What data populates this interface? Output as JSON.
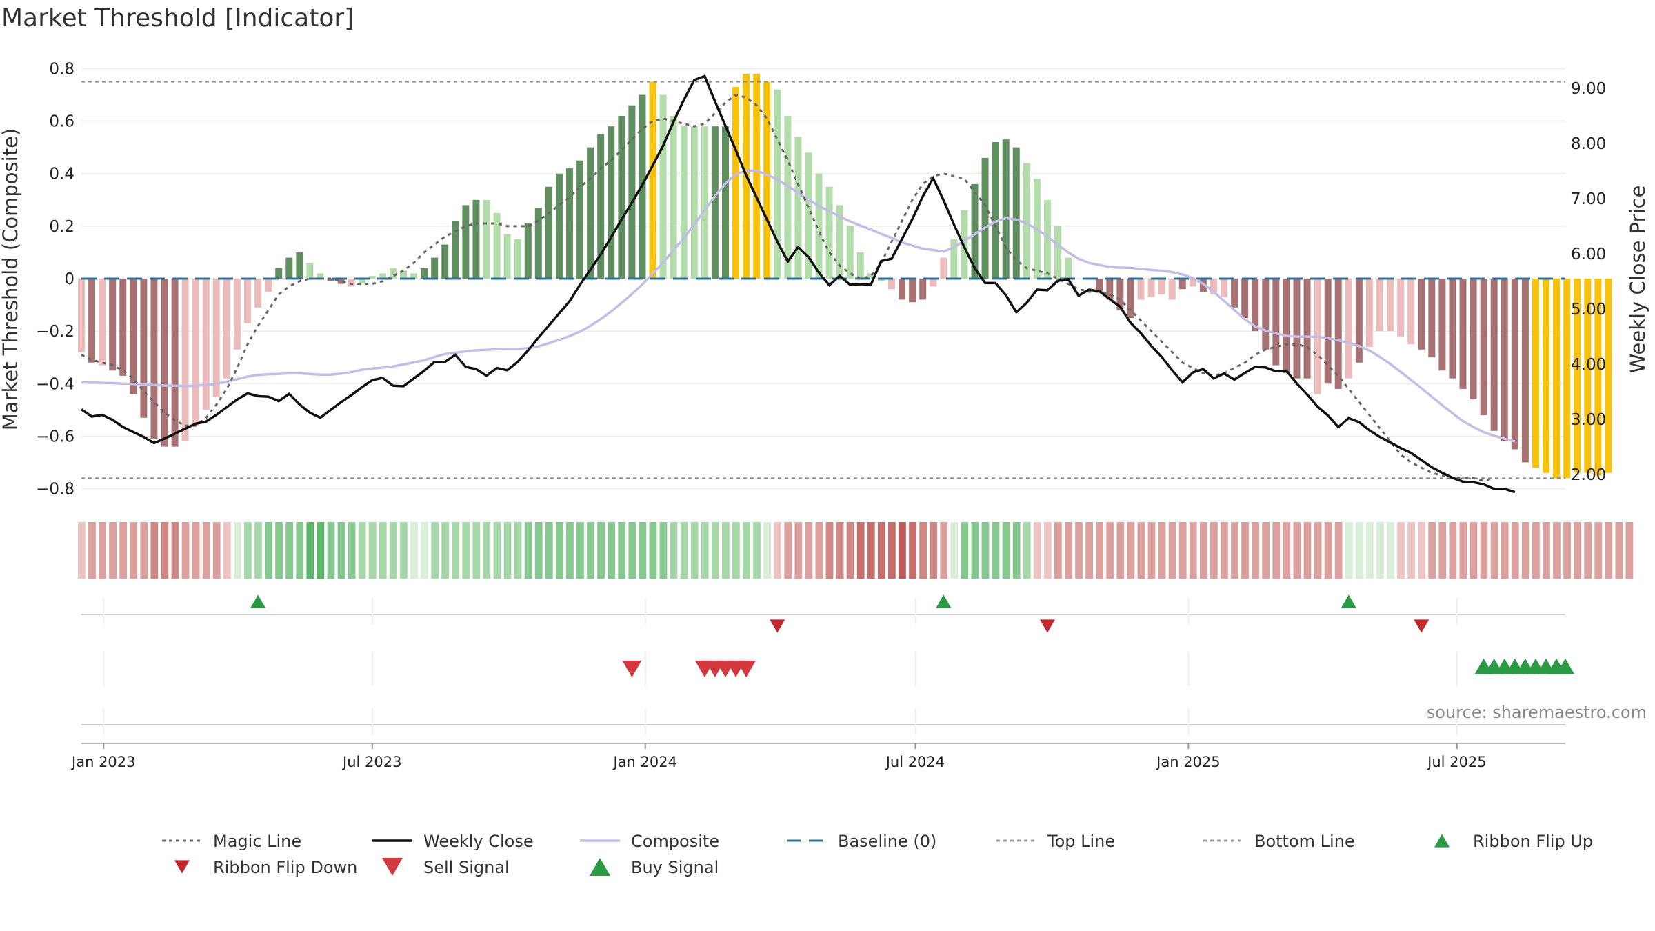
{
  "title": "Market Threshold [Indicator]",
  "source": "source: sharemaestro.com",
  "colors": {
    "strong_green": "#5f8f5f",
    "light_green": "#b2dcaa",
    "strong_red": "#a87272",
    "light_red": "#ebbcb9",
    "gold": "#f7c20e",
    "weekly_close": "#111111",
    "composite": "#c3bde8",
    "magic_line": "#666666",
    "baseline": "#2a6f9c",
    "signal_up": "#2a9a45",
    "signal_down": "#d2393f"
  },
  "chart_data": {
    "type": "bar",
    "title": "Market Threshold [Indicator]",
    "ylabel_left": "Market Threshold (Composite)",
    "ylabel_right": "Weekly Close Price",
    "ylim_left": [
      -0.83,
      0.83
    ],
    "ylim_right": [
      1.6,
      9.5
    ],
    "yticks_left": [
      "0.8",
      "0.6",
      "0.4",
      "0.2",
      "0",
      "−0.2",
      "−0.4",
      "−0.6",
      "−0.8"
    ],
    "yticks_left_values": [
      0.8,
      0.6,
      0.4,
      0.2,
      0,
      -0.2,
      -0.4,
      -0.6,
      -0.8
    ],
    "yticks_right": [
      "9.00",
      "8.00",
      "7.00",
      "6.00",
      "5.00",
      "4.00",
      "3.00",
      "2.00"
    ],
    "yticks_right_values": [
      9,
      8,
      7,
      6,
      5,
      4,
      3,
      2
    ],
    "x_range": [
      "2022-12-17",
      "2025-09-12"
    ],
    "xticks": [
      "Jan 2023",
      "Jul 2023",
      "Jan 2024",
      "Jul 2024",
      "Jan 2025",
      "Jul 2025"
    ],
    "xticks_dates": [
      "2023-01-01",
      "2023-07-01",
      "2024-01-01",
      "2024-07-01",
      "2025-01-01",
      "2025-07-01"
    ],
    "top_line": 0.75,
    "bottom_line": -0.76,
    "baseline": 0,
    "first_week": "2022-12-17",
    "week_step_days": 7,
    "bar_categories": "0 light red, 1 strong red, 2 light green, 3 strong green, 4 gold",
    "bar_values": [
      -0.28,
      -0.32,
      -0.33,
      -0.35,
      -0.37,
      -0.44,
      -0.53,
      -0.61,
      -0.64,
      -0.64,
      -0.62,
      -0.56,
      -0.5,
      -0.45,
      -0.38,
      -0.27,
      -0.17,
      -0.11,
      -0.05,
      0.04,
      0.08,
      0.1,
      0.06,
      0.02,
      -0.01,
      -0.02,
      -0.03,
      -0.02,
      0.01,
      0.02,
      0.04,
      0.03,
      0.02,
      0.04,
      0.08,
      0.13,
      0.22,
      0.28,
      0.3,
      0.3,
      0.25,
      0.17,
      0.15,
      0.21,
      0.27,
      0.35,
      0.4,
      0.42,
      0.45,
      0.5,
      0.55,
      0.58,
      0.62,
      0.66,
      0.7,
      0.75,
      0.7,
      0.62,
      0.58,
      0.58,
      0.58,
      0.58,
      0.58,
      0.73,
      0.78,
      0.78,
      0.75,
      0.72,
      0.62,
      0.54,
      0.48,
      0.4,
      0.35,
      0.28,
      0.2,
      0.1,
      0.02,
      -0.01,
      -0.04,
      -0.08,
      -0.09,
      -0.08,
      -0.03,
      0.08,
      0.15,
      0.26,
      0.36,
      0.46,
      0.52,
      0.53,
      0.5,
      0.44,
      0.38,
      0.3,
      0.2,
      0.08,
      0.0,
      0.0,
      -0.05,
      -0.08,
      -0.12,
      -0.15,
      -0.08,
      -0.07,
      -0.06,
      -0.08,
      -0.04,
      -0.03,
      -0.05,
      -0.06,
      -0.07,
      -0.11,
      -0.15,
      -0.2,
      -0.27,
      -0.33,
      -0.36,
      -0.38,
      -0.38,
      -0.44,
      -0.4,
      -0.42,
      -0.38,
      -0.32,
      -0.26,
      -0.2,
      -0.2,
      -0.22,
      -0.25,
      -0.27,
      -0.3,
      -0.35,
      -0.38,
      -0.42,
      -0.46,
      -0.52,
      -0.58,
      -0.62,
      -0.65,
      -0.7,
      -0.72,
      -0.74,
      -0.76,
      -0.76,
      -0.74,
      -0.74,
      -0.75,
      -0.74
    ],
    "bar_categories_per_week": [
      0,
      1,
      0,
      1,
      1,
      1,
      1,
      1,
      1,
      1,
      0,
      0,
      0,
      0,
      0,
      0,
      0,
      0,
      0,
      3,
      3,
      3,
      2,
      2,
      1,
      1,
      0,
      2,
      2,
      2,
      2,
      2,
      2,
      3,
      3,
      3,
      3,
      3,
      3,
      2,
      2,
      2,
      2,
      3,
      3,
      3,
      3,
      3,
      3,
      3,
      3,
      3,
      3,
      3,
      3,
      4,
      2,
      2,
      2,
      2,
      2,
      3,
      3,
      4,
      4,
      4,
      4,
      2,
      2,
      2,
      2,
      2,
      2,
      2,
      2,
      2,
      2,
      2,
      0,
      1,
      1,
      1,
      0,
      0,
      2,
      2,
      3,
      3,
      3,
      3,
      3,
      2,
      2,
      2,
      2,
      2,
      2,
      2,
      1,
      1,
      1,
      1,
      0,
      0,
      0,
      0,
      1,
      0,
      1,
      0,
      0,
      1,
      1,
      1,
      1,
      1,
      1,
      1,
      1,
      0,
      1,
      1,
      0,
      1,
      0,
      0,
      0,
      0,
      0,
      1,
      1,
      1,
      1,
      1,
      1,
      1,
      1,
      1,
      1,
      1,
      4,
      4,
      4,
      4,
      4,
      4,
      4,
      4
    ],
    "weekly_close": [
      3.18,
      3.05,
      3.08,
      2.99,
      2.86,
      2.77,
      2.68,
      2.57,
      2.65,
      2.74,
      2.83,
      2.92,
      2.96,
      3.08,
      3.22,
      3.36,
      3.47,
      3.42,
      3.41,
      3.33,
      3.46,
      3.27,
      3.12,
      3.03,
      3.17,
      3.31,
      3.44,
      3.58,
      3.71,
      3.75,
      3.61,
      3.6,
      3.74,
      3.88,
      4.04,
      4.04,
      4.17,
      3.95,
      3.91,
      3.79,
      3.93,
      3.89,
      4.04,
      4.25,
      4.48,
      4.7,
      4.92,
      5.14,
      5.44,
      5.71,
      5.99,
      6.3,
      6.62,
      6.93,
      7.25,
      7.6,
      7.96,
      8.39,
      8.79,
      9.15,
      9.22,
      8.76,
      8.32,
      7.88,
      7.42,
      7.02,
      6.62,
      6.22,
      5.86,
      6.12,
      5.94,
      5.66,
      5.43,
      5.6,
      5.44,
      5.45,
      5.44,
      5.87,
      5.91,
      6.27,
      6.63,
      7.04,
      7.37,
      6.97,
      6.53,
      6.12,
      5.74,
      5.47,
      5.47,
      5.25,
      4.94,
      5.11,
      5.35,
      5.34,
      5.51,
      5.54,
      5.24,
      5.35,
      5.32,
      5.18,
      5.04,
      4.75,
      4.56,
      4.33,
      4.13,
      3.89,
      3.67,
      3.85,
      3.91,
      3.74,
      3.83,
      3.72,
      3.84,
      3.95,
      3.94,
      3.87,
      3.88,
      3.65,
      3.45,
      3.23,
      3.07,
      2.86,
      3.02,
      2.95,
      2.8,
      2.68,
      2.58,
      2.48,
      2.39,
      2.26,
      2.13,
      2.03,
      1.94,
      1.87,
      1.86,
      1.82,
      1.74,
      1.74,
      1.68
    ],
    "composite_line": [
      -0.395,
      -0.396,
      -0.397,
      -0.398,
      -0.4,
      -0.401,
      -0.403,
      -0.405,
      -0.407,
      -0.408,
      -0.409,
      -0.408,
      -0.405,
      -0.4,
      -0.393,
      -0.383,
      -0.373,
      -0.367,
      -0.364,
      -0.363,
      -0.361,
      -0.361,
      -0.363,
      -0.366,
      -0.366,
      -0.362,
      -0.356,
      -0.347,
      -0.342,
      -0.339,
      -0.334,
      -0.327,
      -0.319,
      -0.311,
      -0.298,
      -0.287,
      -0.282,
      -0.277,
      -0.273,
      -0.271,
      -0.269,
      -0.268,
      -0.268,
      -0.265,
      -0.258,
      -0.246,
      -0.233,
      -0.219,
      -0.202,
      -0.18,
      -0.154,
      -0.125,
      -0.093,
      -0.059,
      -0.022,
      0.019,
      0.061,
      0.108,
      0.154,
      0.206,
      0.26,
      0.315,
      0.362,
      0.398,
      0.412,
      0.41,
      0.397,
      0.377,
      0.353,
      0.327,
      0.3,
      0.277,
      0.257,
      0.237,
      0.218,
      0.202,
      0.187,
      0.17,
      0.155,
      0.138,
      0.126,
      0.114,
      0.109,
      0.103,
      0.12,
      0.144,
      0.169,
      0.195,
      0.217,
      0.23,
      0.225,
      0.21,
      0.188,
      0.16,
      0.129,
      0.1,
      0.075,
      0.06,
      0.052,
      0.044,
      0.042,
      0.041,
      0.037,
      0.033,
      0.03,
      0.025,
      0.016,
      0.002,
      -0.02,
      -0.05,
      -0.085,
      -0.12,
      -0.155,
      -0.182,
      -0.198,
      -0.209,
      -0.218,
      -0.221,
      -0.221,
      -0.222,
      -0.227,
      -0.235,
      -0.245,
      -0.257,
      -0.274,
      -0.298,
      -0.325,
      -0.355,
      -0.386,
      -0.417,
      -0.45,
      -0.482,
      -0.513,
      -0.543,
      -0.565,
      -0.585,
      -0.598,
      -0.61,
      -0.62
    ],
    "magic_line": [
      -0.29,
      -0.31,
      -0.32,
      -0.33,
      -0.35,
      -0.38,
      -0.43,
      -0.47,
      -0.51,
      -0.54,
      -0.56,
      -0.56,
      -0.53,
      -0.48,
      -0.42,
      -0.34,
      -0.25,
      -0.18,
      -0.12,
      -0.06,
      -0.03,
      -0.01,
      0.0,
      0.0,
      0.0,
      -0.01,
      -0.02,
      -0.02,
      -0.02,
      -0.01,
      0.01,
      0.03,
      0.06,
      0.1,
      0.13,
      0.16,
      0.18,
      0.2,
      0.21,
      0.21,
      0.21,
      0.2,
      0.2,
      0.2,
      0.22,
      0.25,
      0.28,
      0.31,
      0.35,
      0.38,
      0.42,
      0.45,
      0.49,
      0.53,
      0.57,
      0.6,
      0.61,
      0.6,
      0.59,
      0.58,
      0.59,
      0.63,
      0.67,
      0.7,
      0.69,
      0.66,
      0.61,
      0.53,
      0.45,
      0.36,
      0.27,
      0.18,
      0.1,
      0.05,
      0.02,
      0.0,
      0.01,
      0.06,
      0.14,
      0.22,
      0.3,
      0.36,
      0.39,
      0.4,
      0.39,
      0.38,
      0.33,
      0.28,
      0.2,
      0.12,
      0.07,
      0.04,
      0.03,
      0.02,
      0.0,
      -0.02,
      -0.04,
      -0.05,
      -0.05,
      -0.06,
      -0.08,
      -0.12,
      -0.16,
      -0.2,
      -0.24,
      -0.28,
      -0.32,
      -0.34,
      -0.36,
      -0.37,
      -0.36,
      -0.34,
      -0.32,
      -0.29,
      -0.27,
      -0.26,
      -0.25,
      -0.25,
      -0.26,
      -0.29,
      -0.33,
      -0.37,
      -0.42,
      -0.47,
      -0.52,
      -0.57,
      -0.62,
      -0.67,
      -0.7,
      -0.72,
      -0.74,
      -0.75,
      -0.76,
      -0.76,
      -0.76,
      -0.77,
      -0.76
    ],
    "ribbon_levels": [
      -1,
      -2,
      -2,
      -2,
      -2,
      -2,
      -2,
      -3,
      -3,
      -3,
      -2,
      -2,
      -2,
      -2,
      -1,
      1,
      2,
      2,
      3,
      3,
      3,
      3,
      4,
      4,
      3,
      3,
      3,
      2,
      2,
      2,
      2,
      2,
      1,
      1,
      2,
      2,
      2,
      2,
      2,
      2,
      2,
      2,
      2,
      3,
      3,
      3,
      3,
      3,
      3,
      3,
      3,
      3,
      3,
      3,
      3,
      3,
      3,
      2,
      2,
      2,
      2,
      2,
      2,
      2,
      2,
      2,
      1,
      -1,
      -2,
      -2,
      -2,
      -2,
      -3,
      -3,
      -3,
      -4,
      -4,
      -4,
      -4,
      -5,
      -4,
      -3,
      -3,
      -2,
      1,
      3,
      3,
      3,
      3,
      3,
      3,
      2,
      -1,
      -1,
      -2,
      -2,
      -2,
      -2,
      -2,
      -2,
      -2,
      -2,
      -2,
      -2,
      -2,
      -2,
      -2,
      -2,
      -2,
      -2,
      -2,
      -2,
      -2,
      -2,
      -2,
      -2,
      -2,
      -2,
      -2,
      -2,
      -2,
      -2,
      1,
      1,
      1,
      1,
      1,
      -1,
      -1,
      -1,
      -2,
      -2,
      -2,
      -2,
      -2,
      -2,
      -2,
      -2,
      -2,
      -2,
      -2,
      -2,
      -2,
      -2,
      -2,
      -2,
      -2,
      -2,
      -2,
      -2
    ],
    "ribbon_flip_up": [
      "2023-04-15",
      "2024-07-20",
      "2025-04-19"
    ],
    "ribbon_flip_down": [
      "2024-03-30",
      "2024-09-28",
      "2025-06-07"
    ],
    "sell_signals": [
      "2023-12-23",
      "2024-02-10",
      "2024-02-17",
      "2024-02-24",
      "2024-03-02",
      "2024-03-09"
    ],
    "buy_signals": [
      "2025-07-19",
      "2025-07-26",
      "2025-08-02",
      "2025-08-09",
      "2025-08-16",
      "2025-08-23",
      "2025-08-30",
      "2025-09-06",
      "2025-09-12"
    ]
  },
  "legend": [
    {
      "label": "Magic Line",
      "type": "line",
      "style": "dotted",
      "color": "#666666"
    },
    {
      "label": "Weekly Close",
      "type": "line",
      "style": "solid",
      "color": "#111111"
    },
    {
      "label": "Composite",
      "type": "line",
      "style": "solid",
      "color": "#c3bde8"
    },
    {
      "label": "Baseline (0)",
      "type": "line",
      "style": "dashed",
      "color": "#2a6f9c"
    },
    {
      "label": "Top Line",
      "type": "line",
      "style": "dotted",
      "color": "#999999"
    },
    {
      "label": "Bottom Line",
      "type": "line",
      "style": "dotted",
      "color": "#999999"
    },
    {
      "label": "Ribbon Flip Up",
      "type": "marker-up",
      "color": "#2a9a45"
    },
    {
      "label": "Ribbon Flip Down",
      "type": "marker-down",
      "color": "#c0282e"
    },
    {
      "label": "Sell Signal",
      "type": "marker-down-big",
      "color": "#d2393f"
    },
    {
      "label": "Buy Signal",
      "type": "marker-up-big",
      "color": "#2a9a45"
    }
  ]
}
